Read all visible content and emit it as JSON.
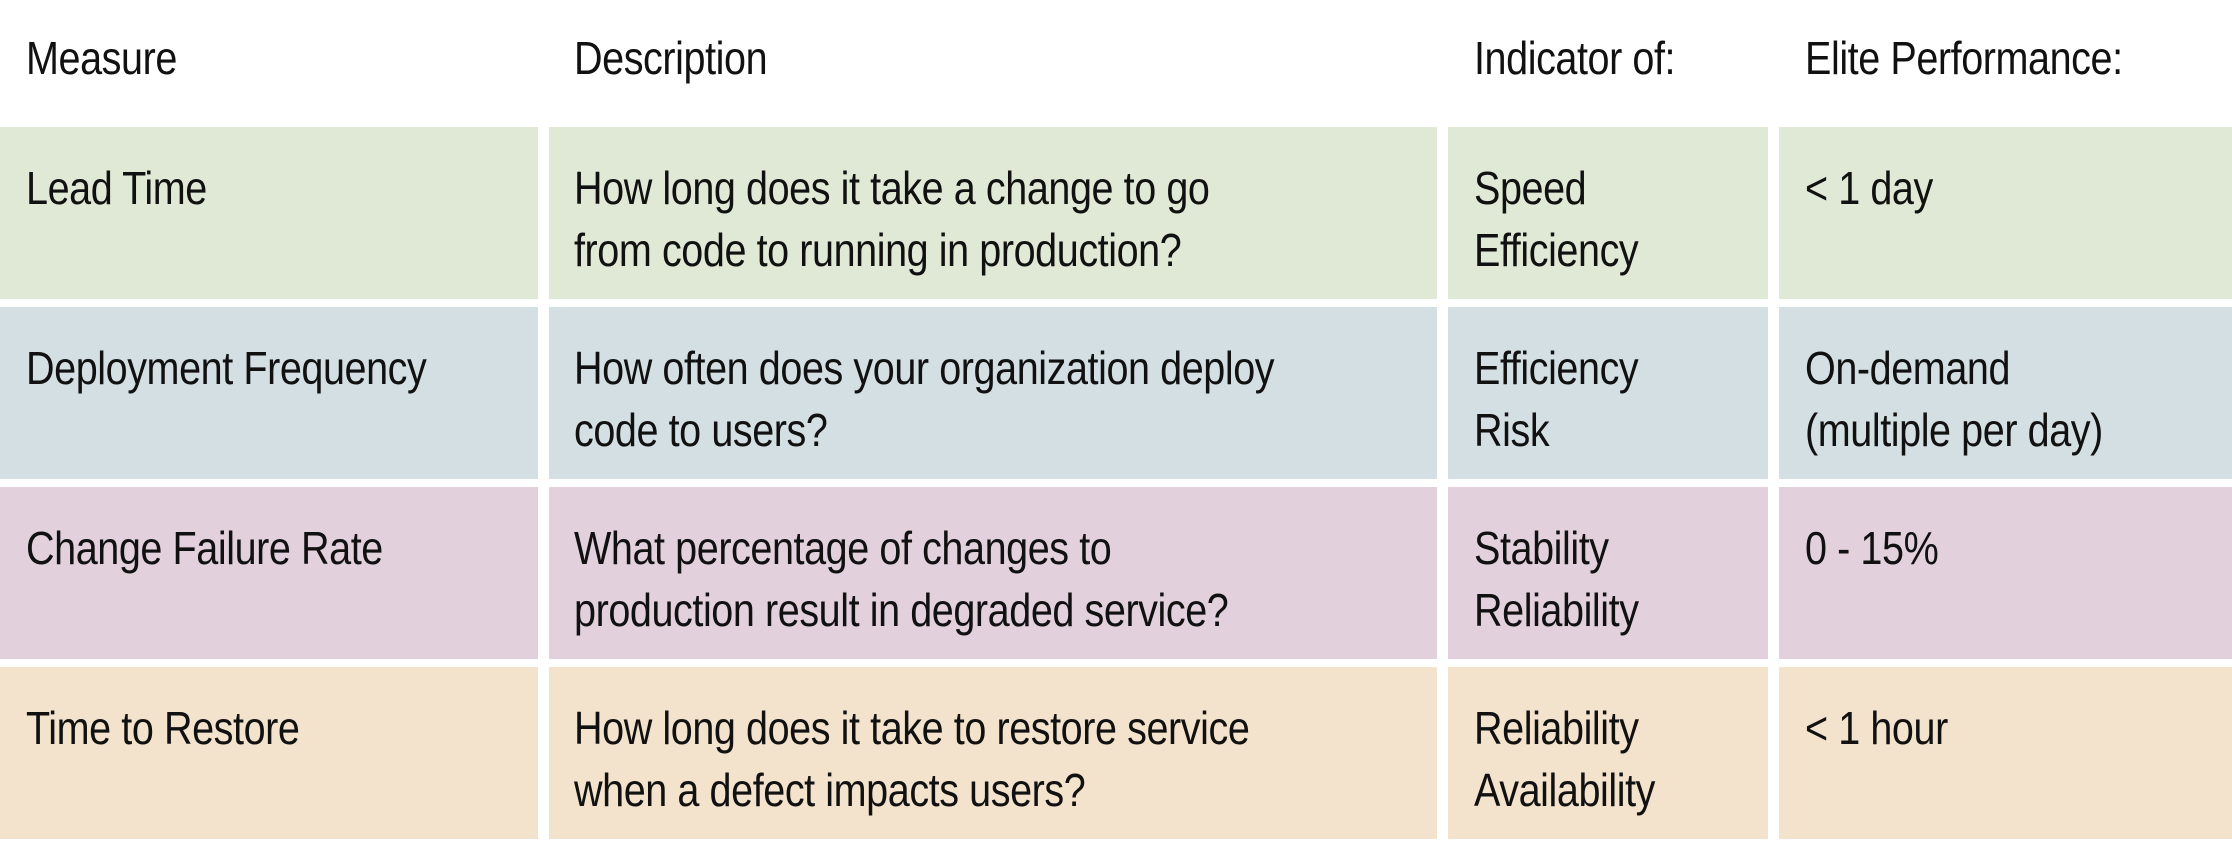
{
  "headers": {
    "measure": "Measure",
    "description": "Description",
    "indicator": "Indicator of:",
    "elite": "Elite Performance:"
  },
  "colors": {
    "row_1": "#dfe9d5",
    "row_2": "#d3dfe2",
    "row_3": "#e2d0dc",
    "row_4": "#f3e2cc"
  },
  "rows": [
    {
      "measure": "Lead Time",
      "description": [
        "How long does it take a change to go",
        "from code to running in production?"
      ],
      "indicator": [
        "Speed",
        "Efficiency"
      ],
      "elite": [
        "< 1 day",
        ""
      ]
    },
    {
      "measure": "Deployment Frequency",
      "description": [
        "How often does your organization deploy",
        "code to users?"
      ],
      "indicator": [
        "Efficiency",
        "Risk"
      ],
      "elite": [
        "On-demand",
        "(multiple per day)"
      ]
    },
    {
      "measure": "Change Failure Rate",
      "description": [
        "What percentage of changes to",
        "production result in degraded service?"
      ],
      "indicator": [
        "Stability",
        "Reliability"
      ],
      "elite": [
        "0 - 15%",
        ""
      ]
    },
    {
      "measure": "Time to Restore",
      "description": [
        "How long does it take to restore service",
        "when a defect impacts users?"
      ],
      "indicator": [
        "Reliability",
        "Availability"
      ],
      "elite": [
        "< 1 hour",
        ""
      ]
    }
  ]
}
